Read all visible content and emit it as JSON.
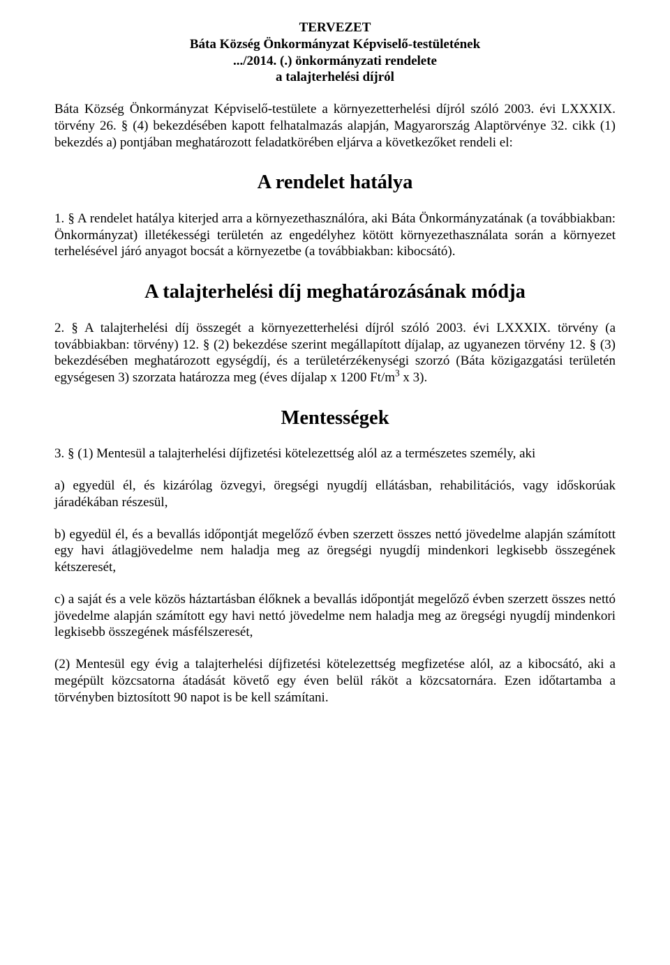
{
  "header": {
    "line1": "TERVEZET",
    "line2": "Báta Község Önkormányzat Képviselő-testületének",
    "line3": ".../2014. (.) önkormányzati rendelete",
    "line4": "a talajterhelési díjról"
  },
  "preamble": "Báta Község Önkormányzat Képviselő-testülete a környezetterhelési díjról szóló 2003. évi LXXXIX. törvény 26. § (4) bekezdésében kapott felhatalmazás alapján, Magyarország Alaptörvénye 32. cikk (1) bekezdés a) pontjában meghatározott feladatkörében eljárva a következőket rendeli el:",
  "section1": {
    "heading": "A rendelet hatálya",
    "p1": "1. § A rendelet hatálya kiterjed arra a környezethasználóra, aki Báta Önkormányzatának (a továbbiakban: Önkormányzat) illetékességi területén az engedélyhez kötött környezethasználata során a környezet terhelésével járó anyagot bocsát a környezetbe (a továbbiakban: kibocsátó)."
  },
  "section2": {
    "heading": "A talajterhelési díj meghatározásának módja",
    "p1_prefix": "2. § A talajterhelési díj összegét a környezetterhelési díjról szóló 2003. évi LXXXIX. törvény (a továbbiakban: törvény) 12. § (2) bekezdése szerint megállapított díjalap, az ugyanezen törvény 12. § (3) bekezdésében meghatározott egységdíj, és a területérzékenységi szorzó (Báta közigazgatási területén egységesen 3) szorzata határozza meg (éves díjalap x 1200 Ft/m",
    "p1_sup": "3",
    "p1_suffix": " x 3)."
  },
  "section3": {
    "heading": "Mentességek",
    "p1": "3. § (1) Mentesül a talajterhelési díjfizetési kötelezettség alól az a természetes személy, aki",
    "a": "a) egyedül él, és kizárólag özvegyi, öregségi nyugdíj ellátásban, rehabilitációs, vagy időskorúak járadékában részesül,",
    "b": "b) egyedül él, és a bevallás időpontját megelőző évben szerzett összes nettó jövedelme alapján számított egy havi átlagjövedelme nem haladja meg az öregségi nyugdíj mindenkori legkisebb összegének kétszeresét,",
    "c": "c) a saját és a vele közös háztartásban élőknek a bevallás időpontját megelőző évben szerzett összes nettó jövedelme alapján számított egy havi nettó jövedelme nem haladja meg az öregségi nyugdíj mindenkori legkisebb összegének másfélszeresét,",
    "p2": "(2) Mentesül egy évig a talajterhelési díjfizetési kötelezettség megfizetése alól, az a kibocsátó, aki a megépült közcsatorna átadását követő egy éven belül ráköt a közcsatornára. Ezen időtartamba a törvényben biztosított 90 napot is be kell számítani."
  }
}
